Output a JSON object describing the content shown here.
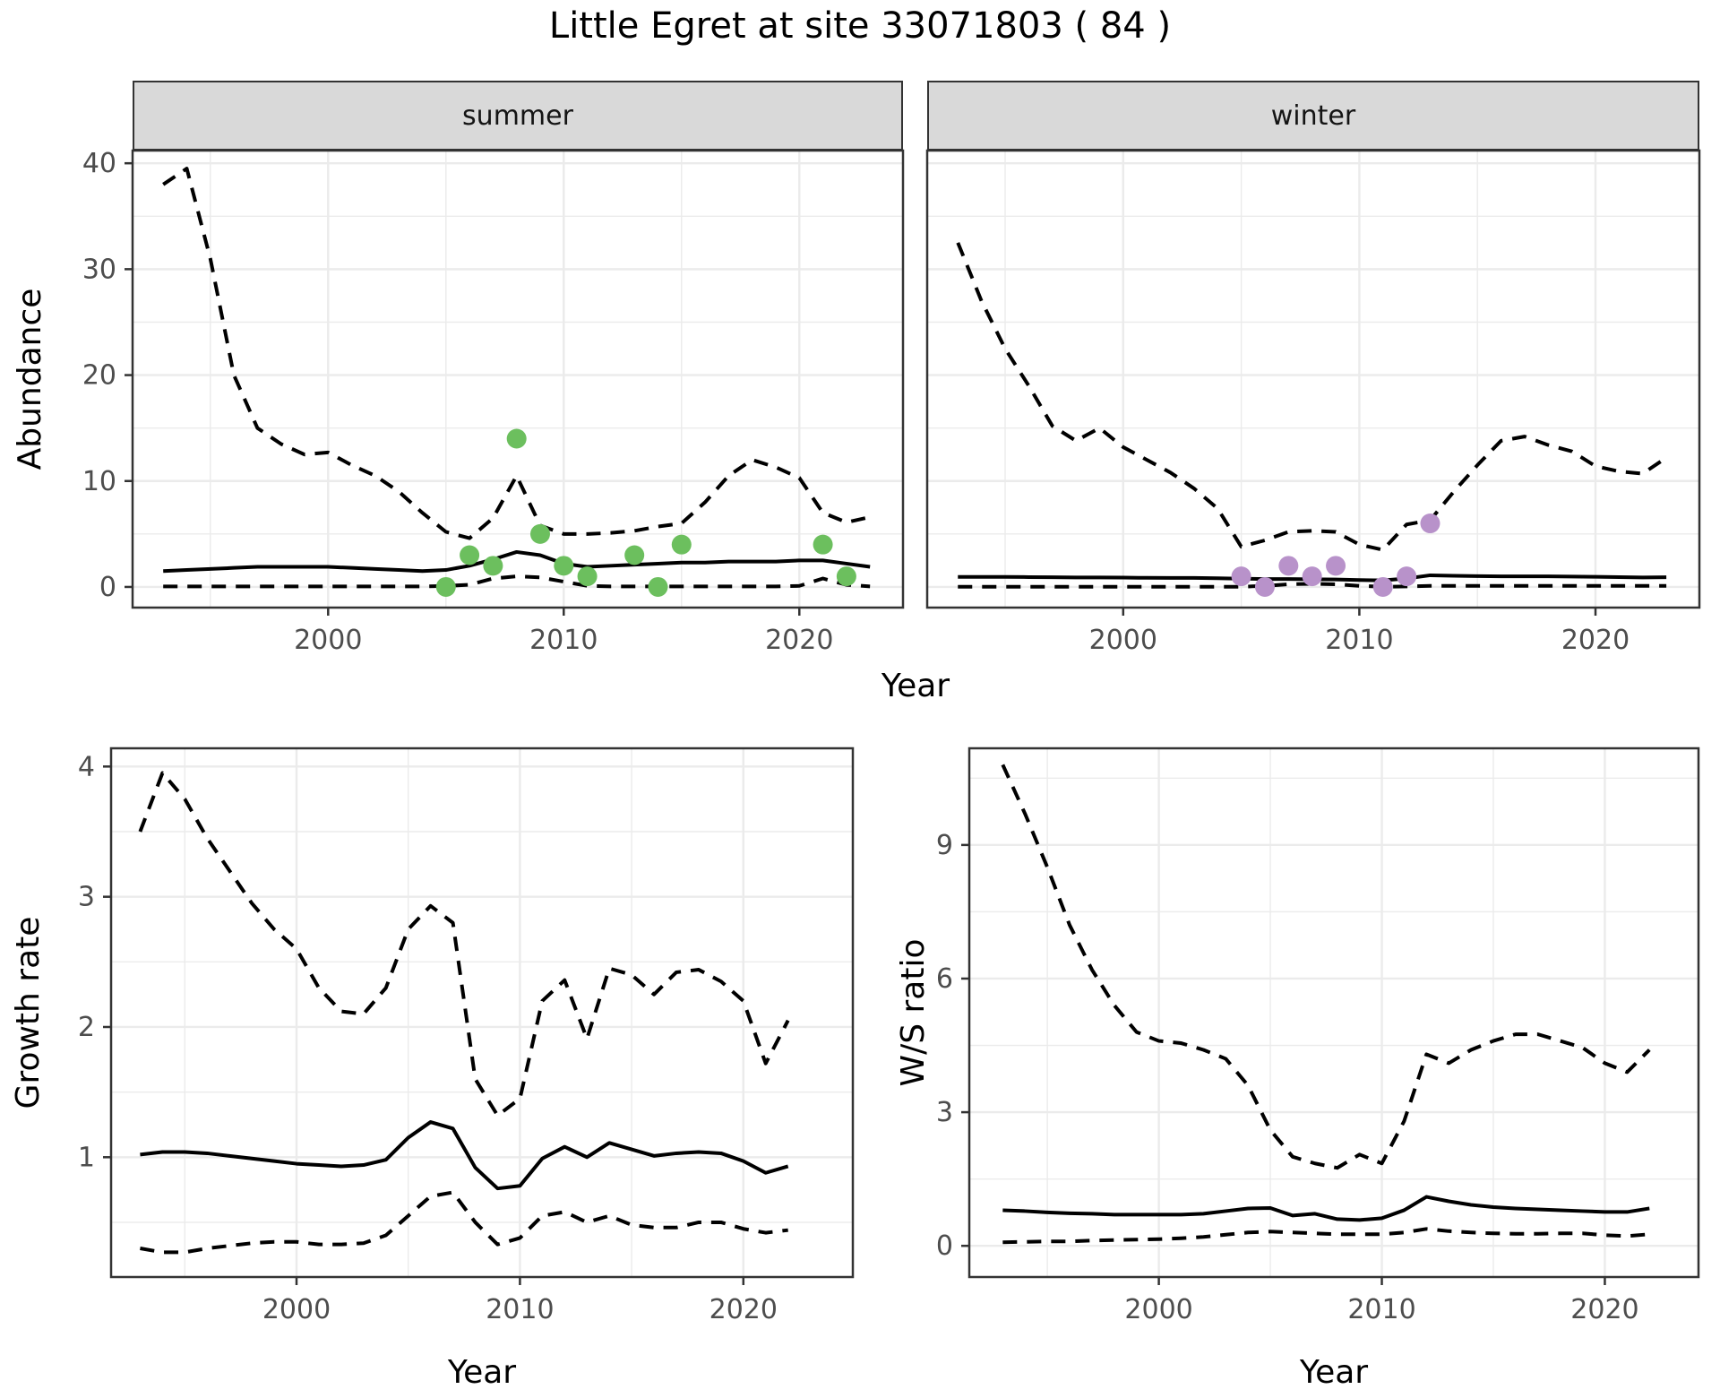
{
  "title": "Little Egret at site 33071803 ( 84 )",
  "axis_labels": {
    "abundance": "Abundance",
    "year": "Year",
    "growth_rate": "Growth rate",
    "ws_ratio": "W/S ratio"
  },
  "style": {
    "line_color": "#000000",
    "grid_color": "#ebebeb",
    "panel_border_color": "#333333",
    "tick_color": "#333333",
    "tick_text_color": "#4d4d4d",
    "strip_bg": "#d9d9d9",
    "summer_point_color": "#6CBF5E",
    "winter_point_color": "#B892CA"
  },
  "chart_data": [
    {
      "id": "summer-abundance",
      "type": "line",
      "facet": "summer",
      "ylabel": "Abundance",
      "xlabel": "Year",
      "x": {
        "lim": [
          1991.7,
          2024.4
        ],
        "major": [
          2000,
          2010,
          2020
        ],
        "minor": [
          1995,
          2005,
          2015
        ],
        "tick_labels": [
          "2000",
          "2010",
          "2020"
        ],
        "show_tick_labels": true
      },
      "y": {
        "lim": [
          -1.95,
          41.2
        ],
        "major": [
          0,
          10,
          20,
          30,
          40
        ],
        "minor": [
          5,
          15,
          25,
          35
        ],
        "tick_labels": [
          "0",
          "10",
          "20",
          "30",
          "40"
        ],
        "show_tick_labels": true
      },
      "years": [
        1993,
        1994,
        1995,
        1996,
        1997,
        1998,
        1999,
        2000,
        2001,
        2002,
        2003,
        2004,
        2005,
        2006,
        2007,
        2008,
        2009,
        2010,
        2011,
        2012,
        2013,
        2014,
        2015,
        2016,
        2017,
        2018,
        2019,
        2020,
        2021,
        2022,
        2023
      ],
      "series": [
        {
          "name": "upper_95ci",
          "style": "dashed",
          "values": [
            38,
            39.5,
            31,
            20,
            15,
            13.5,
            12.5,
            12.7,
            11.5,
            10.5,
            9,
            7,
            5.2,
            4.6,
            6.5,
            10.5,
            5.8,
            5.0,
            5.0,
            5.1,
            5.3,
            5.7,
            6.0,
            8.0,
            10.5,
            12.0,
            11.3,
            10.3,
            7.0,
            6.1,
            6.6
          ]
        },
        {
          "name": "median",
          "style": "solid",
          "values": [
            1.5,
            1.6,
            1.7,
            1.8,
            1.9,
            1.9,
            1.9,
            1.9,
            1.8,
            1.7,
            1.6,
            1.5,
            1.6,
            2.0,
            2.6,
            3.3,
            3.0,
            2.2,
            1.9,
            2.0,
            2.1,
            2.2,
            2.3,
            2.3,
            2.4,
            2.4,
            2.4,
            2.5,
            2.5,
            2.2,
            1.9
          ]
        },
        {
          "name": "lower_95ci",
          "style": "dashed",
          "values": [
            0.05,
            0.05,
            0.05,
            0.05,
            0.05,
            0.05,
            0.05,
            0.05,
            0.05,
            0.05,
            0.05,
            0.05,
            0.1,
            0.2,
            0.8,
            1.0,
            0.9,
            0.5,
            0.1,
            0.05,
            0.05,
            0.05,
            0.05,
            0.05,
            0.05,
            0.05,
            0.05,
            0.1,
            0.8,
            0.2,
            0.05
          ]
        }
      ],
      "points": {
        "name": "observed_counts",
        "color": "#6CBF5E",
        "data": [
          [
            2005,
            0
          ],
          [
            2006,
            3
          ],
          [
            2007,
            2
          ],
          [
            2008,
            14
          ],
          [
            2009,
            5
          ],
          [
            2010,
            2
          ],
          [
            2011,
            1
          ],
          [
            2013,
            3
          ],
          [
            2014,
            0
          ],
          [
            2015,
            4
          ],
          [
            2021,
            4
          ],
          [
            2022,
            1
          ]
        ]
      }
    },
    {
      "id": "winter-abundance",
      "type": "line",
      "facet": "winter",
      "ylabel": "Abundance",
      "xlabel": "Year",
      "x": {
        "lim": [
          1991.7,
          2024.4
        ],
        "major": [
          2000,
          2010,
          2020
        ],
        "minor": [
          1995,
          2005,
          2015
        ],
        "tick_labels": [
          "2000",
          "2010",
          "2020"
        ],
        "show_tick_labels": true
      },
      "y": {
        "lim": [
          -1.95,
          41.2
        ],
        "major": [
          0,
          10,
          20,
          30,
          40
        ],
        "minor": [
          5,
          15,
          25,
          35
        ],
        "tick_labels": [
          "0",
          "10",
          "20",
          "30",
          "40"
        ],
        "show_tick_labels": false
      },
      "years": [
        1993,
        1994,
        1995,
        1996,
        1997,
        1998,
        1999,
        2000,
        2001,
        2002,
        2003,
        2004,
        2005,
        2006,
        2007,
        2008,
        2009,
        2010,
        2011,
        2012,
        2013,
        2014,
        2015,
        2016,
        2017,
        2018,
        2019,
        2020,
        2021,
        2022,
        2023
      ],
      "series": [
        {
          "name": "upper_95ci",
          "style": "dashed",
          "values": [
            32.5,
            27,
            22.5,
            19,
            15.2,
            13.8,
            15,
            13.2,
            12,
            10.8,
            9.3,
            7.4,
            3.8,
            4.4,
            5.2,
            5.3,
            5.2,
            4.0,
            3.5,
            5.9,
            6.3,
            9.0,
            11.5,
            13.8,
            14.2,
            13.4,
            12.8,
            11.4,
            10.9,
            10.7,
            12.2
          ]
        },
        {
          "name": "median",
          "style": "solid",
          "values": [
            0.95,
            0.95,
            0.95,
            0.93,
            0.92,
            0.9,
            0.9,
            0.88,
            0.86,
            0.85,
            0.85,
            0.82,
            0.78,
            0.75,
            0.75,
            0.73,
            0.7,
            0.65,
            0.62,
            0.8,
            1.1,
            1.05,
            1.02,
            1.0,
            1.0,
            1.0,
            0.98,
            0.96,
            0.93,
            0.9,
            0.92
          ]
        },
        {
          "name": "lower_95ci",
          "style": "dashed",
          "values": [
            0.02,
            0.02,
            0.02,
            0.02,
            0.02,
            0.02,
            0.02,
            0.02,
            0.02,
            0.02,
            0.02,
            0.02,
            0.02,
            0.1,
            0.25,
            0.3,
            0.25,
            0.1,
            0.02,
            0.05,
            0.1,
            0.1,
            0.1,
            0.1,
            0.1,
            0.1,
            0.1,
            0.1,
            0.1,
            0.1,
            0.1
          ]
        }
      ],
      "points": {
        "name": "observed_counts",
        "color": "#B892CA",
        "data": [
          [
            2005,
            1
          ],
          [
            2006,
            0
          ],
          [
            2007,
            2
          ],
          [
            2008,
            1
          ],
          [
            2009,
            2
          ],
          [
            2011,
            0
          ],
          [
            2012,
            1
          ],
          [
            2013,
            6
          ]
        ]
      }
    },
    {
      "id": "growth-rate",
      "type": "line",
      "ylabel": "Growth rate",
      "xlabel": "Year",
      "x": {
        "lim": [
          1991.7,
          2024.9
        ],
        "major": [
          2000,
          2010,
          2020
        ],
        "minor": [
          1995,
          2005,
          2015
        ],
        "tick_labels": [
          "2000",
          "2010",
          "2020"
        ],
        "show_tick_labels": true
      },
      "y": {
        "lim": [
          0.08,
          4.14
        ],
        "major": [
          1,
          2,
          3,
          4
        ],
        "minor": [
          0.5,
          1.5,
          2.5,
          3.5
        ],
        "tick_labels": [
          "1",
          "2",
          "3",
          "4"
        ],
        "show_tick_labels": true
      },
      "years": [
        1993,
        1994,
        1995,
        1996,
        1997,
        1998,
        1999,
        2000,
        2001,
        2002,
        2003,
        2004,
        2005,
        2006,
        2007,
        2008,
        2009,
        2010,
        2011,
        2012,
        2013,
        2014,
        2015,
        2016,
        2017,
        2018,
        2019,
        2020,
        2021,
        2022
      ],
      "series": [
        {
          "name": "upper_95ci",
          "style": "dashed",
          "values": [
            3.5,
            3.95,
            3.75,
            3.45,
            3.2,
            2.95,
            2.75,
            2.6,
            2.3,
            2.12,
            2.1,
            2.3,
            2.75,
            2.93,
            2.8,
            1.6,
            1.32,
            1.45,
            2.2,
            2.36,
            1.91,
            2.45,
            2.4,
            2.25,
            2.42,
            2.44,
            2.35,
            2.2,
            1.72,
            2.05
          ]
        },
        {
          "name": "median",
          "style": "solid",
          "values": [
            1.02,
            1.04,
            1.04,
            1.03,
            1.01,
            0.99,
            0.97,
            0.95,
            0.94,
            0.93,
            0.94,
            0.98,
            1.15,
            1.27,
            1.22,
            0.92,
            0.76,
            0.78,
            0.99,
            1.08,
            1.0,
            1.11,
            1.06,
            1.01,
            1.03,
            1.04,
            1.03,
            0.97,
            0.88,
            0.93
          ]
        },
        {
          "name": "lower_95ci",
          "style": "dashed",
          "values": [
            0.3,
            0.27,
            0.27,
            0.3,
            0.32,
            0.34,
            0.35,
            0.35,
            0.33,
            0.33,
            0.34,
            0.4,
            0.55,
            0.7,
            0.73,
            0.5,
            0.33,
            0.38,
            0.55,
            0.58,
            0.5,
            0.55,
            0.48,
            0.46,
            0.46,
            0.5,
            0.5,
            0.45,
            0.42,
            0.44
          ]
        }
      ],
      "points": null
    },
    {
      "id": "ws-ratio",
      "type": "line",
      "ylabel": "W/S ratio",
      "xlabel": "Year",
      "x": {
        "lim": [
          1991.5,
          2024.2
        ],
        "major": [
          2000,
          2010,
          2020
        ],
        "minor": [
          1995,
          2005,
          2015
        ],
        "tick_labels": [
          "2000",
          "2010",
          "2020"
        ],
        "show_tick_labels": true
      },
      "y": {
        "lim": [
          -0.7,
          11.17
        ],
        "major": [
          0,
          3,
          6,
          9
        ],
        "minor": [
          1.5,
          4.5,
          7.5,
          10.5
        ],
        "tick_labels": [
          "0",
          "3",
          "6",
          "9"
        ],
        "show_tick_labels": true
      },
      "years": [
        1993,
        1994,
        1995,
        1996,
        1997,
        1998,
        1999,
        2000,
        2001,
        2002,
        2003,
        2004,
        2005,
        2006,
        2007,
        2008,
        2009,
        2010,
        2011,
        2012,
        2013,
        2014,
        2015,
        2016,
        2017,
        2018,
        2019,
        2020,
        2021,
        2022
      ],
      "series": [
        {
          "name": "upper_95ci",
          "style": "dashed",
          "values": [
            10.8,
            9.7,
            8.5,
            7.2,
            6.2,
            5.4,
            4.8,
            4.6,
            4.55,
            4.4,
            4.2,
            3.6,
            2.6,
            2.0,
            1.85,
            1.75,
            2.05,
            1.85,
            2.8,
            4.3,
            4.1,
            4.4,
            4.6,
            4.75,
            4.75,
            4.6,
            4.45,
            4.1,
            3.9,
            4.4
          ]
        },
        {
          "name": "median",
          "style": "solid",
          "values": [
            0.8,
            0.78,
            0.75,
            0.73,
            0.72,
            0.7,
            0.7,
            0.7,
            0.7,
            0.72,
            0.78,
            0.84,
            0.85,
            0.68,
            0.72,
            0.6,
            0.58,
            0.62,
            0.8,
            1.1,
            1.0,
            0.92,
            0.87,
            0.84,
            0.82,
            0.8,
            0.78,
            0.76,
            0.76,
            0.84
          ]
        },
        {
          "name": "lower_95ci",
          "style": "dashed",
          "values": [
            0.08,
            0.09,
            0.1,
            0.1,
            0.12,
            0.13,
            0.14,
            0.15,
            0.17,
            0.2,
            0.25,
            0.3,
            0.32,
            0.3,
            0.28,
            0.26,
            0.26,
            0.26,
            0.3,
            0.38,
            0.33,
            0.3,
            0.28,
            0.27,
            0.27,
            0.28,
            0.28,
            0.24,
            0.22,
            0.26
          ]
        }
      ],
      "points": null
    }
  ]
}
